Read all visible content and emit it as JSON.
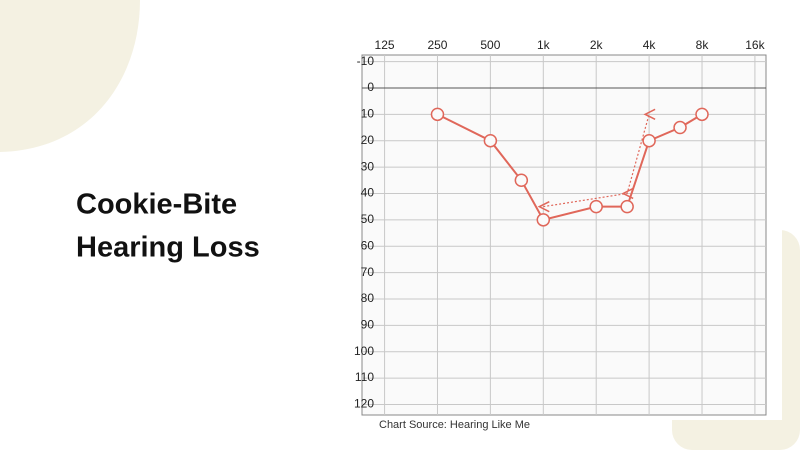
{
  "chart_data": {
    "type": "audiogram",
    "title_lines": [
      "Cookie-Bite",
      "Hearing Loss"
    ],
    "source": "Chart Source: Hearing Like Me",
    "xscale": "log",
    "xlim": [
      93,
      18500
    ],
    "xticks": [
      125,
      250,
      500,
      {
        "value": 1000,
        "label": "1k"
      },
      {
        "value": 2000,
        "label": "2k"
      },
      {
        "value": 4000,
        "label": "4k"
      },
      {
        "value": 8000,
        "label": "8k"
      },
      {
        "value": 16000,
        "label": "16k"
      }
    ],
    "ylim": [
      -12.5,
      124
    ],
    "yticks": [
      -10,
      0,
      10,
      20,
      30,
      40,
      50,
      60,
      70,
      80,
      90,
      100,
      110,
      120
    ],
    "y_inverted": true,
    "grid": true,
    "series": [
      {
        "color": "#e0675a",
        "marker": "circle",
        "line": "solid",
        "x": [
          250,
          500,
          750,
          1000,
          2000,
          3000,
          4000,
          6000,
          8000
        ],
        "values": [
          10,
          20,
          35,
          50,
          45,
          45,
          20,
          15,
          10
        ]
      },
      {
        "color": "#e0675a",
        "marker": "<",
        "line": "dotted",
        "x": [
          1000,
          3000,
          4000
        ],
        "values": [
          45,
          40,
          10
        ]
      }
    ]
  }
}
